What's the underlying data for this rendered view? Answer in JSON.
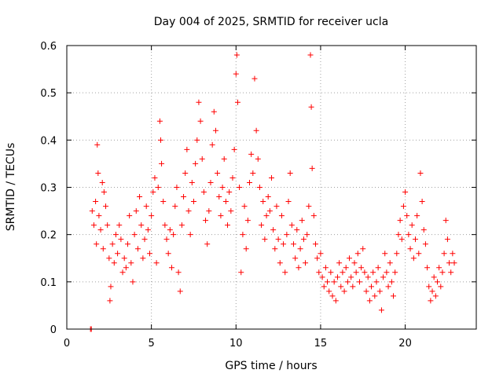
{
  "chart_data": {
    "type": "scatter",
    "title": "Day 004 of 2025, SRMTID for receiver ucla",
    "xlabel": "GPS time / hours",
    "ylabel": "SRMTID / TECUs",
    "xlim": [
      0,
      24.2
    ],
    "ylim": [
      0,
      0.6
    ],
    "grid": true,
    "marker": "plus",
    "color": "#ff0000",
    "x_ticks": [
      0,
      5,
      10,
      15,
      20
    ],
    "x_tick_labels": [
      "0",
      "5",
      "10",
      "15",
      "20"
    ],
    "y_ticks": [
      0,
      0.1,
      0.2,
      0.3,
      0.4,
      0.5,
      0.6
    ],
    "y_tick_labels": [
      "0",
      "0.1",
      "0.2",
      "0.3",
      "0.4",
      "0.5",
      "0.6"
    ],
    "series": [
      {
        "name": "SRMTID",
        "points": [
          [
            1.4,
            0.0
          ],
          [
            1.45,
            0.0
          ],
          [
            1.5,
            0.25
          ],
          [
            1.6,
            0.22
          ],
          [
            1.7,
            0.27
          ],
          [
            1.75,
            0.18
          ],
          [
            1.8,
            0.39
          ],
          [
            1.85,
            0.33
          ],
          [
            1.9,
            0.24
          ],
          [
            2.0,
            0.21
          ],
          [
            2.1,
            0.31
          ],
          [
            2.15,
            0.17
          ],
          [
            2.2,
            0.29
          ],
          [
            2.3,
            0.26
          ],
          [
            2.4,
            0.22
          ],
          [
            2.5,
            0.15
          ],
          [
            2.55,
            0.06
          ],
          [
            2.6,
            0.09
          ],
          [
            2.7,
            0.18
          ],
          [
            2.8,
            0.14
          ],
          [
            2.9,
            0.2
          ],
          [
            3.0,
            0.16
          ],
          [
            3.1,
            0.22
          ],
          [
            3.2,
            0.19
          ],
          [
            3.3,
            0.12
          ],
          [
            3.4,
            0.15
          ],
          [
            3.5,
            0.13
          ],
          [
            3.6,
            0.18
          ],
          [
            3.7,
            0.24
          ],
          [
            3.8,
            0.14
          ],
          [
            3.9,
            0.1
          ],
          [
            4.0,
            0.2
          ],
          [
            4.1,
            0.25
          ],
          [
            4.2,
            0.17
          ],
          [
            4.3,
            0.28
          ],
          [
            4.4,
            0.22
          ],
          [
            4.5,
            0.15
          ],
          [
            4.6,
            0.19
          ],
          [
            4.7,
            0.26
          ],
          [
            4.8,
            0.21
          ],
          [
            4.9,
            0.16
          ],
          [
            5.0,
            0.24
          ],
          [
            5.1,
            0.29
          ],
          [
            5.2,
            0.32
          ],
          [
            5.3,
            0.14
          ],
          [
            5.4,
            0.3
          ],
          [
            5.5,
            0.44
          ],
          [
            5.55,
            0.4
          ],
          [
            5.6,
            0.35
          ],
          [
            5.7,
            0.27
          ],
          [
            5.8,
            0.22
          ],
          [
            5.9,
            0.19
          ],
          [
            6.0,
            0.16
          ],
          [
            6.1,
            0.21
          ],
          [
            6.2,
            0.13
          ],
          [
            6.3,
            0.2
          ],
          [
            6.4,
            0.26
          ],
          [
            6.5,
            0.3
          ],
          [
            6.6,
            0.12
          ],
          [
            6.7,
            0.08
          ],
          [
            6.8,
            0.22
          ],
          [
            6.9,
            0.28
          ],
          [
            7.0,
            0.33
          ],
          [
            7.1,
            0.38
          ],
          [
            7.2,
            0.25
          ],
          [
            7.3,
            0.2
          ],
          [
            7.4,
            0.31
          ],
          [
            7.5,
            0.27
          ],
          [
            7.6,
            0.35
          ],
          [
            7.7,
            0.4
          ],
          [
            7.8,
            0.48
          ],
          [
            7.9,
            0.44
          ],
          [
            8.0,
            0.36
          ],
          [
            8.1,
            0.29
          ],
          [
            8.2,
            0.23
          ],
          [
            8.3,
            0.18
          ],
          [
            8.4,
            0.25
          ],
          [
            8.5,
            0.31
          ],
          [
            8.6,
            0.39
          ],
          [
            8.7,
            0.46
          ],
          [
            8.8,
            0.42
          ],
          [
            8.9,
            0.33
          ],
          [
            9.0,
            0.28
          ],
          [
            9.1,
            0.24
          ],
          [
            9.2,
            0.3
          ],
          [
            9.3,
            0.36
          ],
          [
            9.4,
            0.27
          ],
          [
            9.5,
            0.22
          ],
          [
            9.6,
            0.29
          ],
          [
            9.7,
            0.25
          ],
          [
            9.8,
            0.32
          ],
          [
            9.9,
            0.38
          ],
          [
            10.0,
            0.54
          ],
          [
            10.05,
            0.58
          ],
          [
            10.1,
            0.48
          ],
          [
            10.2,
            0.3
          ],
          [
            10.3,
            0.12
          ],
          [
            10.4,
            0.2
          ],
          [
            10.5,
            0.26
          ],
          [
            10.6,
            0.17
          ],
          [
            10.7,
            0.23
          ],
          [
            10.8,
            0.31
          ],
          [
            10.9,
            0.37
          ],
          [
            11.0,
            0.33
          ],
          [
            11.1,
            0.53
          ],
          [
            11.2,
            0.42
          ],
          [
            11.3,
            0.36
          ],
          [
            11.4,
            0.3
          ],
          [
            11.5,
            0.22
          ],
          [
            11.6,
            0.27
          ],
          [
            11.7,
            0.19
          ],
          [
            11.8,
            0.24
          ],
          [
            11.9,
            0.28
          ],
          [
            12.0,
            0.25
          ],
          [
            12.1,
            0.32
          ],
          [
            12.2,
            0.21
          ],
          [
            12.3,
            0.17
          ],
          [
            12.4,
            0.26
          ],
          [
            12.5,
            0.19
          ],
          [
            12.6,
            0.14
          ],
          [
            12.7,
            0.24
          ],
          [
            12.8,
            0.18
          ],
          [
            12.9,
            0.12
          ],
          [
            13.0,
            0.2
          ],
          [
            13.1,
            0.27
          ],
          [
            13.2,
            0.33
          ],
          [
            13.3,
            0.22
          ],
          [
            13.4,
            0.18
          ],
          [
            13.5,
            0.15
          ],
          [
            13.6,
            0.21
          ],
          [
            13.7,
            0.13
          ],
          [
            13.8,
            0.17
          ],
          [
            13.9,
            0.23
          ],
          [
            14.0,
            0.19
          ],
          [
            14.1,
            0.14
          ],
          [
            14.2,
            0.2
          ],
          [
            14.3,
            0.26
          ],
          [
            14.4,
            0.58
          ],
          [
            14.45,
            0.47
          ],
          [
            14.5,
            0.34
          ],
          [
            14.6,
            0.24
          ],
          [
            14.7,
            0.18
          ],
          [
            14.8,
            0.15
          ],
          [
            14.9,
            0.12
          ],
          [
            15.0,
            0.16
          ],
          [
            15.1,
            0.11
          ],
          [
            15.2,
            0.09
          ],
          [
            15.3,
            0.13
          ],
          [
            15.4,
            0.1
          ],
          [
            15.5,
            0.08
          ],
          [
            15.6,
            0.12
          ],
          [
            15.7,
            0.07
          ],
          [
            15.8,
            0.1
          ],
          [
            15.9,
            0.06
          ],
          [
            16.0,
            0.11
          ],
          [
            16.1,
            0.14
          ],
          [
            16.2,
            0.09
          ],
          [
            16.3,
            0.12
          ],
          [
            16.4,
            0.08
          ],
          [
            16.5,
            0.13
          ],
          [
            16.6,
            0.1
          ],
          [
            16.7,
            0.15
          ],
          [
            16.8,
            0.11
          ],
          [
            16.9,
            0.09
          ],
          [
            17.0,
            0.14
          ],
          [
            17.1,
            0.12
          ],
          [
            17.2,
            0.16
          ],
          [
            17.3,
            0.1
          ],
          [
            17.4,
            0.13
          ],
          [
            17.5,
            0.17
          ],
          [
            17.6,
            0.12
          ],
          [
            17.7,
            0.08
          ],
          [
            17.8,
            0.11
          ],
          [
            17.9,
            0.06
          ],
          [
            18.0,
            0.09
          ],
          [
            18.1,
            0.12
          ],
          [
            18.2,
            0.07
          ],
          [
            18.3,
            0.1
          ],
          [
            18.4,
            0.13
          ],
          [
            18.5,
            0.08
          ],
          [
            18.6,
            0.04
          ],
          [
            18.7,
            0.11
          ],
          [
            18.8,
            0.16
          ],
          [
            18.9,
            0.12
          ],
          [
            19.0,
            0.09
          ],
          [
            19.1,
            0.14
          ],
          [
            19.2,
            0.1
          ],
          [
            19.3,
            0.07
          ],
          [
            19.4,
            0.12
          ],
          [
            19.5,
            0.16
          ],
          [
            19.6,
            0.2
          ],
          [
            19.7,
            0.23
          ],
          [
            19.8,
            0.19
          ],
          [
            19.9,
            0.26
          ],
          [
            20.0,
            0.29
          ],
          [
            20.1,
            0.24
          ],
          [
            20.2,
            0.2
          ],
          [
            20.3,
            0.17
          ],
          [
            20.4,
            0.22
          ],
          [
            20.5,
            0.15
          ],
          [
            20.6,
            0.19
          ],
          [
            20.7,
            0.24
          ],
          [
            20.8,
            0.16
          ],
          [
            20.9,
            0.33
          ],
          [
            21.0,
            0.27
          ],
          [
            21.1,
            0.21
          ],
          [
            21.2,
            0.18
          ],
          [
            21.3,
            0.13
          ],
          [
            21.4,
            0.09
          ],
          [
            21.5,
            0.06
          ],
          [
            21.6,
            0.08
          ],
          [
            21.7,
            0.11
          ],
          [
            21.8,
            0.07
          ],
          [
            21.9,
            0.1
          ],
          [
            22.0,
            0.13
          ],
          [
            22.1,
            0.09
          ],
          [
            22.2,
            0.12
          ],
          [
            22.3,
            0.16
          ],
          [
            22.4,
            0.23
          ],
          [
            22.5,
            0.19
          ],
          [
            22.6,
            0.14
          ],
          [
            22.7,
            0.12
          ],
          [
            22.8,
            0.16
          ],
          [
            22.9,
            0.14
          ]
        ]
      }
    ]
  }
}
